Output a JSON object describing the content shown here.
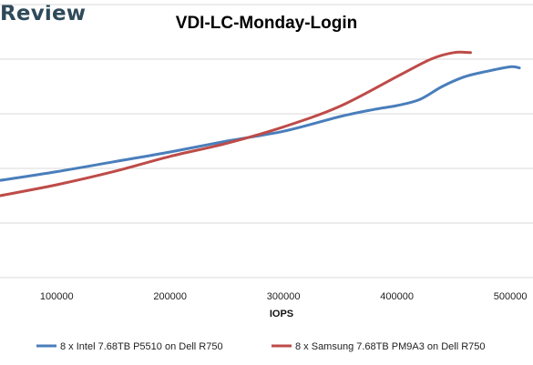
{
  "brand": {
    "text": "Review"
  },
  "chart_data": {
    "type": "line",
    "title": "VDI-LC-Monday-Login",
    "xlabel": "IOPS",
    "ylabel": "",
    "xlim": [
      50000,
      520000
    ],
    "ylim": [
      0,
      5
    ],
    "x_ticks": [
      100000,
      200000,
      300000,
      400000,
      500000
    ],
    "x_tick_labels": [
      "100000",
      "200000",
      "300000",
      "400000",
      "500000"
    ],
    "y_gridlines": [
      1,
      2,
      3,
      4,
      5
    ],
    "y_tick_labels_visible": false,
    "grid": "horizontal",
    "legend_position": "bottom",
    "series": [
      {
        "name": "8 x Intel 7.68TB P5510 on Dell R750",
        "color": "#4a7ebb",
        "x": [
          50000,
          100000,
          150000,
          200000,
          250000,
          300000,
          350000,
          380000,
          400000,
          420000,
          440000,
          460000,
          480000,
          500000,
          508000
        ],
        "y": [
          1.78,
          1.94,
          2.12,
          2.3,
          2.5,
          2.68,
          2.95,
          3.08,
          3.15,
          3.26,
          3.5,
          3.68,
          3.78,
          3.86,
          3.84
        ]
      },
      {
        "name": "8 x Samsung 7.68TB PM9A3 on Dell R750",
        "color": "#be4b48",
        "x": [
          50000,
          100000,
          150000,
          200000,
          250000,
          300000,
          350000,
          400000,
          430000,
          450000,
          465000
        ],
        "y": [
          1.5,
          1.7,
          1.94,
          2.22,
          2.46,
          2.76,
          3.14,
          3.68,
          4.0,
          4.12,
          4.12
        ]
      }
    ]
  }
}
